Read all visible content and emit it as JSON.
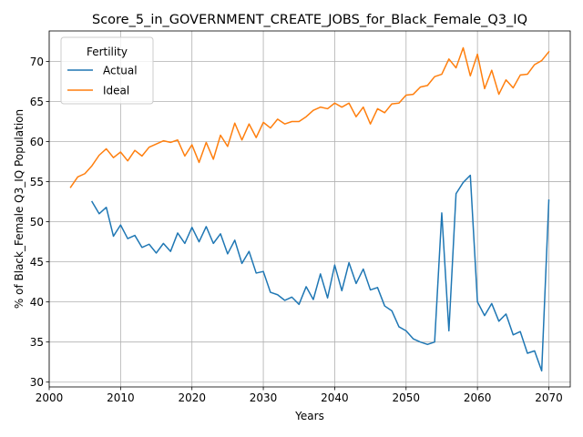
{
  "chart_data": {
    "type": "line",
    "title": "Score_5_in_GOVERNMENT_CREATE_JOBS_for_Black_Female_Q3_IQ",
    "xlabel": "Years",
    "ylabel": "% of Black_Female Q3_IQ Population",
    "xlim": [
      2000,
      2073
    ],
    "ylim": [
      29.4,
      73.8
    ],
    "xticks": [
      2000,
      2010,
      2020,
      2030,
      2040,
      2050,
      2060,
      2070
    ],
    "yticks": [
      30,
      35,
      40,
      45,
      50,
      55,
      60,
      65,
      70
    ],
    "grid": true,
    "legend": {
      "title": "Fertility",
      "placement": "top-left"
    },
    "series": [
      {
        "name": "Actual",
        "color": "#1f77b4",
        "x": [
          2006,
          2007,
          2008,
          2009,
          2010,
          2011,
          2012,
          2013,
          2014,
          2015,
          2016,
          2017,
          2018,
          2019,
          2020,
          2021,
          2022,
          2023,
          2024,
          2025,
          2026,
          2027,
          2028,
          2029,
          2030,
          2031,
          2032,
          2033,
          2034,
          2035,
          2036,
          2037,
          2038,
          2039,
          2040,
          2041,
          2042,
          2043,
          2044,
          2045,
          2046,
          2047,
          2048,
          2049,
          2050,
          2051,
          2052,
          2053,
          2054,
          2055,
          2056,
          2057,
          2058,
          2059,
          2060,
          2061,
          2062,
          2063,
          2064,
          2065,
          2066,
          2067,
          2068,
          2069,
          2070
        ],
        "y": [
          52.5,
          51.0,
          51.8,
          48.2,
          49.6,
          47.9,
          48.3,
          46.8,
          47.2,
          46.1,
          47.3,
          46.3,
          48.6,
          47.3,
          49.3,
          47.5,
          49.4,
          47.3,
          48.5,
          46.0,
          47.7,
          44.8,
          46.3,
          43.6,
          43.8,
          41.2,
          40.9,
          40.2,
          40.6,
          39.7,
          41.9,
          40.3,
          43.5,
          40.5,
          44.6,
          41.4,
          44.9,
          42.3,
          44.1,
          41.5,
          41.8,
          39.5,
          38.9,
          36.9,
          36.4,
          35.4,
          35.0,
          34.7,
          35.0,
          51.1,
          36.4,
          53.5,
          54.9,
          55.8,
          40.0,
          38.3,
          39.8,
          37.6,
          38.5,
          35.9,
          36.3,
          33.6,
          33.9,
          31.4,
          52.7
        ]
      },
      {
        "name": "Ideal",
        "color": "#ff7f0e",
        "x": [
          2003,
          2004,
          2005,
          2006,
          2007,
          2008,
          2009,
          2010,
          2011,
          2012,
          2013,
          2014,
          2015,
          2016,
          2017,
          2018,
          2019,
          2020,
          2021,
          2022,
          2023,
          2024,
          2025,
          2026,
          2027,
          2028,
          2029,
          2030,
          2031,
          2032,
          2033,
          2034,
          2035,
          2036,
          2037,
          2038,
          2039,
          2040,
          2041,
          2042,
          2043,
          2044,
          2045,
          2046,
          2047,
          2048,
          2049,
          2050,
          2051,
          2052,
          2053,
          2054,
          2055,
          2056,
          2057,
          2058,
          2059,
          2060,
          2061,
          2062,
          2063,
          2064,
          2065,
          2066,
          2067,
          2068,
          2069,
          2070
        ],
        "y": [
          54.3,
          55.6,
          56.0,
          57.0,
          58.3,
          59.1,
          58.0,
          58.7,
          57.6,
          58.9,
          58.2,
          59.3,
          59.7,
          60.1,
          59.9,
          60.2,
          58.2,
          59.6,
          57.4,
          59.9,
          57.8,
          60.8,
          59.4,
          62.3,
          60.2,
          62.2,
          60.5,
          62.4,
          61.7,
          62.8,
          62.2,
          62.5,
          62.5,
          63.1,
          63.9,
          64.3,
          64.1,
          64.8,
          64.3,
          64.8,
          63.1,
          64.3,
          62.2,
          64.1,
          63.6,
          64.7,
          64.8,
          65.8,
          65.9,
          66.8,
          67.0,
          68.1,
          68.4,
          70.3,
          69.2,
          71.7,
          68.2,
          70.9,
          66.6,
          68.9,
          65.9,
          67.7,
          66.7,
          68.3,
          68.4,
          69.6,
          70.1,
          71.2
        ]
      }
    ]
  }
}
